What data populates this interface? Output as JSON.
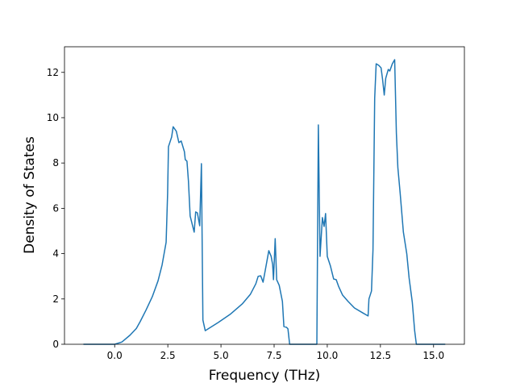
{
  "chart_data": {
    "type": "line",
    "xlabel": "Frequency (THz)",
    "ylabel": "Density of States",
    "xlim": [
      -2.36,
      16.45
    ],
    "ylim": [
      0,
      13.13
    ],
    "xticks": [
      {
        "value": 0,
        "label": "0.0"
      },
      {
        "value": 2.5,
        "label": "2.5"
      },
      {
        "value": 5,
        "label": "5.0"
      },
      {
        "value": 7.5,
        "label": "7.5"
      },
      {
        "value": 10,
        "label": "10.0"
      },
      {
        "value": 12.5,
        "label": "12.5"
      },
      {
        "value": 15,
        "label": "15.0"
      }
    ],
    "yticks": [
      0,
      2,
      4,
      6,
      8,
      10,
      12
    ],
    "grid": false,
    "series": [
      {
        "color": "#1f77b4",
        "x": [
          -1.47,
          0,
          0.34,
          0.72,
          1.02,
          1.2,
          1.47,
          1.77,
          2.04,
          2.23,
          2.42,
          2.49,
          2.53,
          2.68,
          2.75,
          2.9,
          3.02,
          3.13,
          3.28,
          3.32,
          3.4,
          3.47,
          3.55,
          3.74,
          3.81,
          3.89,
          4.0,
          4.08,
          4.15,
          4.26,
          4.87,
          5.43,
          6.0,
          6.38,
          6.64,
          6.75,
          6.87,
          6.98,
          7.09,
          7.25,
          7.36,
          7.43,
          7.47,
          7.55,
          7.62,
          7.74,
          7.89,
          7.96,
          8.08,
          8.15,
          8.23,
          9.51,
          9.58,
          9.66,
          9.77,
          9.85,
          9.92,
          10.0,
          10.15,
          10.3,
          10.42,
          10.53,
          10.72,
          10.98,
          11.28,
          11.66,
          11.92,
          11.96,
          12.08,
          12.15,
          12.23,
          12.3,
          12.42,
          12.53,
          12.6,
          12.68,
          12.75,
          12.87,
          12.94,
          13.06,
          13.17,
          13.25,
          13.32,
          13.43,
          13.58,
          13.74,
          13.85,
          14.0,
          14.11,
          14.19,
          15.55
        ],
        "values": [
          0,
          0,
          0.1,
          0.4,
          0.7,
          1.0,
          1.5,
          2.1,
          2.8,
          3.5,
          4.5,
          6.65,
          8.72,
          9.15,
          9.6,
          9.4,
          8.9,
          8.97,
          8.5,
          8.15,
          8.08,
          7.2,
          5.66,
          4.95,
          5.84,
          5.8,
          5.23,
          7.97,
          1.07,
          0.6,
          0.96,
          1.32,
          1.78,
          2.2,
          2.67,
          3.0,
          3.02,
          2.74,
          3.3,
          4.13,
          3.88,
          3.52,
          2.85,
          4.66,
          2.85,
          2.6,
          1.89,
          0.78,
          0.75,
          0.68,
          0,
          0,
          9.68,
          3.88,
          5.59,
          5.2,
          5.77,
          3.88,
          3.45,
          2.88,
          2.85,
          2.56,
          2.17,
          1.89,
          1.6,
          1.39,
          1.25,
          2.0,
          2.35,
          4.16,
          10.85,
          12.38,
          12.31,
          12.2,
          11.7,
          11.0,
          11.74,
          12.13,
          12.06,
          12.38,
          12.56,
          9.32,
          7.8,
          6.65,
          4.95,
          3.99,
          2.92,
          1.85,
          0.6,
          0,
          0
        ]
      }
    ]
  }
}
